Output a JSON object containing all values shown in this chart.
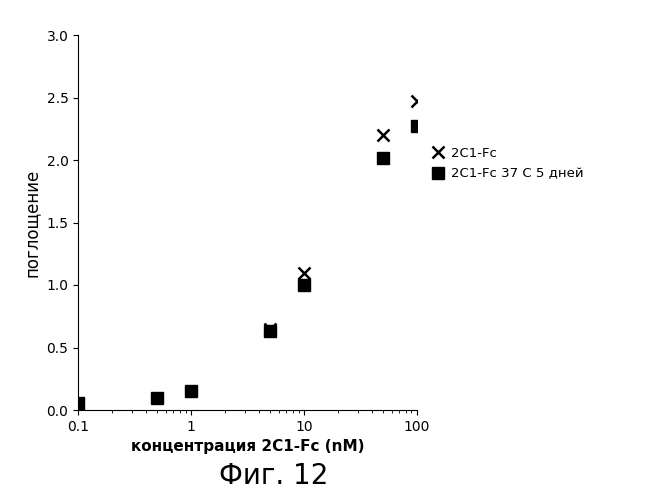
{
  "series1_label": "2C1-Fc",
  "series1_x": [
    0.1,
    5.0,
    10.0,
    50.0,
    100.0
  ],
  "series1_y": [
    0.05,
    0.65,
    1.1,
    2.2,
    2.47
  ],
  "series2_label": "2C1-Fc 37 C 5 дней",
  "series2_x": [
    0.1,
    0.5,
    1.0,
    5.0,
    10.0,
    50.0,
    100.0
  ],
  "series2_y": [
    0.06,
    0.1,
    0.15,
    0.63,
    1.0,
    2.02,
    2.27
  ],
  "ylabel": "поглощение",
  "xlabel_normal": "концентрация ",
  "xlabel_bold": "2C1-Fc (nM)",
  "title": "Фиг. 12",
  "xlim": [
    0.1,
    100
  ],
  "ylim": [
    0,
    3
  ],
  "yticks": [
    0,
    0.5,
    1.0,
    1.5,
    2.0,
    2.5,
    3.0
  ],
  "xticks": [
    0.1,
    1,
    10,
    100
  ],
  "xtick_labels": [
    "0.1",
    "1",
    "10",
    "100"
  ],
  "background_color": "#ffffff",
  "marker1": "x",
  "marker2": "s",
  "color1": "#000000",
  "color2": "#000000",
  "legend1": "2C1-Fc",
  "legend2": "2C1-Fc 37 C 5 дней"
}
